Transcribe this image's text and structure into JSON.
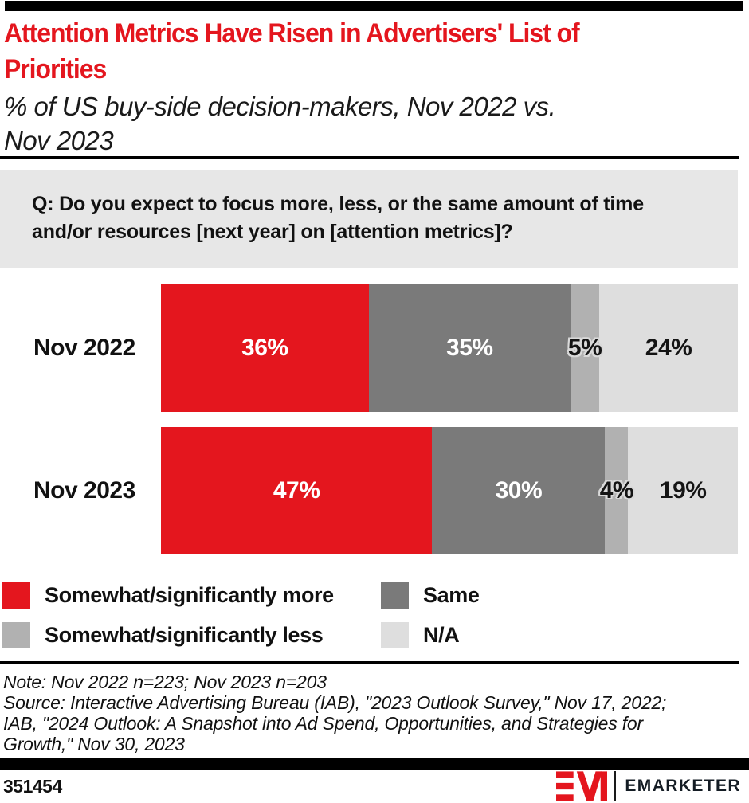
{
  "header": {
    "title_lines": [
      "Attention Metrics Have Risen in Advertisers' List of",
      "Priorities"
    ],
    "subtitle_lines": [
      "% of US buy-side decision-makers, Nov 2022 vs.",
      "Nov 2023"
    ]
  },
  "question": {
    "lines": [
      "Q: Do you expect to focus more, less, or the same amount of time",
      "and/or resources [next year] on [attention metrics]?"
    ]
  },
  "chart_data": {
    "type": "bar",
    "orientation": "horizontal-stacked",
    "title": "Attention Metrics Have Risen in Advertisers' List of Priorities",
    "subtitle": "% of US buy-side decision-makers, Nov 2022 vs. Nov 2023",
    "categories": [
      "Nov 2022",
      "Nov 2023"
    ],
    "series": [
      {
        "name": "Somewhat/significantly more",
        "color": "#e4161e",
        "values": [
          36,
          47
        ],
        "labels": [
          "36%",
          "47%"
        ],
        "label_style": "light"
      },
      {
        "name": "Same",
        "color": "#7a7a7a",
        "values": [
          35,
          30
        ],
        "labels": [
          "35%",
          "30%"
        ],
        "label_style": "light"
      },
      {
        "name": "Somewhat/significantly less",
        "color": "#b1b1b1",
        "values": [
          5,
          4
        ],
        "labels": [
          "5%",
          "4%"
        ],
        "label_style": "dark-halo"
      },
      {
        "name": "N/A",
        "color": "#dedede",
        "values": [
          24,
          19
        ],
        "labels": [
          "24%",
          "19%"
        ],
        "label_style": "dark"
      }
    ],
    "value_suffix": "%",
    "xlim": [
      0,
      100
    ],
    "legend_position": "bottom"
  },
  "notes": {
    "note_line": "Note: Nov 2022 n=223; Nov 2023 n=203",
    "source_lines": [
      "Source: Interactive Advertising Bureau (IAB), \"2023 Outlook Survey,\" Nov 17, 2022;",
      "IAB, \"2024 Outlook: A Snapshot into Ad Spend, Opportunities, and Strategies for",
      "Growth,\" Nov 30, 2023"
    ]
  },
  "footer": {
    "chart_id": "351454",
    "brand": "EMARKETER"
  },
  "colors": {
    "accent_red": "#e4161e",
    "dark_gray": "#7a7a7a",
    "mid_gray": "#b1b1b1",
    "light_gray": "#dedede",
    "question_box_bg": "#e7e7e7",
    "bar_black": "#000000"
  }
}
